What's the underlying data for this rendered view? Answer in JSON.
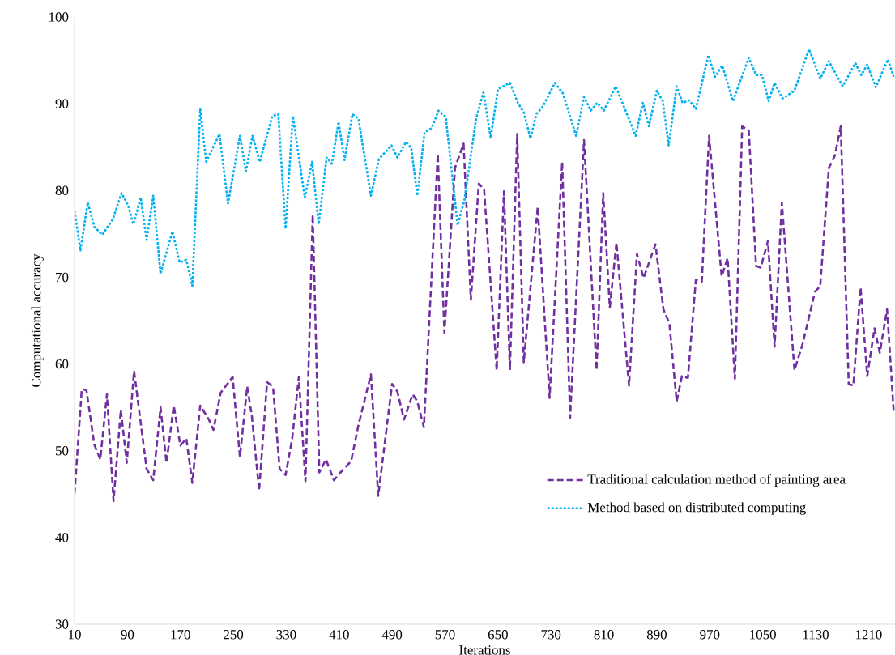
{
  "chart_data": {
    "type": "line",
    "xlabel": "Iterations",
    "ylabel": "Computational accuracy",
    "xlim": [
      10,
      1250
    ],
    "ylim": [
      30,
      100
    ],
    "xticks": [
      10,
      90,
      170,
      250,
      330,
      410,
      490,
      570,
      650,
      730,
      810,
      890,
      970,
      1050,
      1130,
      1210
    ],
    "yticks": [
      30,
      40,
      50,
      60,
      70,
      80,
      90,
      100
    ],
    "legend": "bottom right",
    "grid": false,
    "series": [
      {
        "name": "Traditional calculation method of painting area",
        "color": "#7030a0",
        "line_style": "dashed",
        "x": [
          10,
          21,
          28,
          40,
          49,
          59,
          69,
          80,
          89,
          100,
          119,
          129,
          140,
          149,
          160,
          170,
          179,
          188,
          200,
          213,
          220,
          231,
          249,
          260,
          271,
          278,
          289,
          301,
          310,
          320,
          329,
          339,
          349,
          359,
          370,
          380,
          390,
          402,
          412,
          428,
          439,
          458,
          469,
          490,
          498,
          508,
          521,
          528,
          538,
          559,
          569,
          585,
          598,
          609,
          621,
          629,
          648,
          659,
          668,
          679,
          689,
          710,
          728,
          747,
          759,
          780,
          799,
          809,
          819,
          829,
          848,
          860,
          870,
          888,
          900,
          909,
          920,
          928,
          937,
          949,
          958,
          969,
          988,
          997,
          1008,
          1019,
          1029,
          1040,
          1047,
          1058,
          1068,
          1079,
          1098,
          1110,
          1129,
          1137,
          1150,
          1159,
          1168,
          1180,
          1187,
          1198,
          1208,
          1219,
          1227,
          1238,
          1248
        ],
        "values": [
          45.0,
          57.1,
          57.0,
          50.7,
          49.0,
          56.5,
          44.2,
          54.7,
          48.6,
          59.2,
          47.9,
          46.6,
          55.0,
          48.6,
          55.2,
          50.6,
          51.4,
          46.3,
          55.2,
          53.6,
          52.4,
          56.7,
          58.5,
          49.3,
          57.4,
          54.0,
          45.4,
          57.9,
          57.4,
          47.9,
          47.2,
          51.4,
          58.5,
          46.5,
          77.2,
          47.5,
          49.0,
          46.6,
          47.5,
          48.8,
          52.9,
          58.8,
          44.8,
          57.7,
          56.8,
          53.6,
          56.5,
          55.7,
          52.7,
          84.2,
          63.6,
          82.6,
          85.4,
          67.4,
          80.8,
          80.1,
          59.3,
          79.9,
          59.3,
          86.5,
          60.2,
          78.1,
          56.1,
          83.3,
          53.8,
          85.8,
          59.3,
          79.7,
          66.5,
          74.0,
          57.5,
          72.7,
          69.9,
          73.8,
          66.3,
          64.7,
          55.7,
          58.6,
          58.4,
          69.7,
          69.5,
          86.3,
          70.1,
          72.2,
          58.3,
          87.4,
          86.9,
          71.3,
          71.1,
          74.2,
          62.0,
          78.6,
          59.3,
          62.2,
          68.3,
          69.0,
          82.6,
          84.0,
          87.4,
          57.7,
          57.5,
          68.8,
          58.6,
          64.1,
          61.3,
          66.3,
          54.5
        ]
      },
      {
        "name": "Method based on distributed computing",
        "color": "#00b0f0",
        "line_style": "dotted",
        "x": [
          10,
          19,
          30,
          40,
          52,
          68,
          81,
          91,
          99,
          110,
          119,
          129,
          140,
          158,
          169,
          179,
          188,
          200,
          209,
          229,
          242,
          260,
          269,
          279,
          290,
          309,
          318,
          329,
          340,
          358,
          369,
          379,
          391,
          399,
          409,
          418,
          430,
          439,
          458,
          470,
          489,
          498,
          511,
          519,
          528,
          539,
          550,
          560,
          571,
          589,
          599,
          617,
          628,
          639,
          650,
          668,
          680,
          689,
          699,
          708,
          718,
          736,
          748,
          768,
          780,
          790,
          800,
          810,
          828,
          858,
          869,
          878,
          890,
          899,
          908,
          920,
          929,
          939,
          949,
          968,
          978,
          989,
          1005,
          1029,
          1040,
          1049,
          1059,
          1068,
          1080,
          1098,
          1120,
          1137,
          1150,
          1171,
          1190,
          1199,
          1208,
          1221,
          1239,
          1248
        ],
        "values": [
          77.7,
          73.1,
          78.6,
          75.8,
          74.9,
          76.7,
          79.7,
          78.3,
          76.1,
          79.2,
          74.3,
          79.4,
          70.4,
          75.3,
          71.7,
          72.0,
          69.0,
          89.4,
          83.3,
          86.5,
          78.5,
          86.3,
          82.2,
          86.3,
          83.3,
          88.6,
          88.8,
          75.6,
          88.6,
          79.2,
          83.3,
          76.1,
          83.8,
          83.1,
          87.9,
          83.5,
          88.8,
          88.3,
          79.4,
          83.6,
          85.2,
          83.8,
          85.6,
          84.9,
          79.4,
          86.7,
          87.2,
          89.2,
          88.5,
          76.0,
          78.8,
          88.3,
          91.3,
          86.1,
          91.7,
          92.4,
          90.1,
          89.0,
          86.0,
          88.8,
          89.7,
          92.4,
          91.2,
          86.3,
          90.8,
          89.2,
          90.1,
          89.2,
          92.0,
          86.3,
          90.1,
          87.4,
          91.5,
          90.3,
          85.2,
          92.0,
          90.1,
          90.4,
          89.4,
          95.6,
          93.1,
          94.4,
          90.3,
          95.3,
          93.3,
          93.3,
          90.3,
          92.4,
          90.6,
          91.5,
          96.3,
          92.9,
          94.9,
          92.0,
          94.7,
          93.3,
          94.5,
          91.9,
          95.1,
          93.1
        ]
      }
    ]
  }
}
